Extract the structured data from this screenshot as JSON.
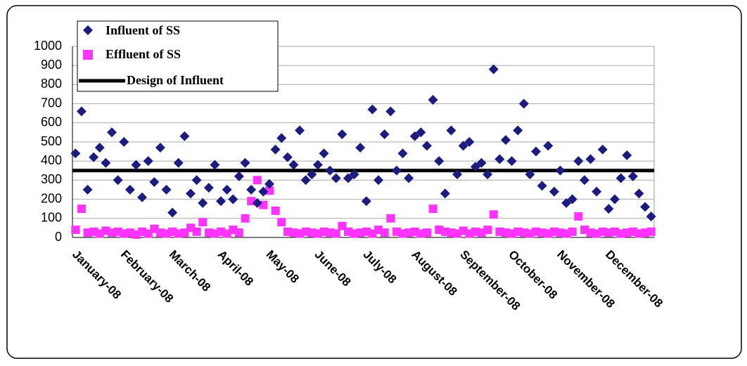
{
  "chart_data": {
    "type": "scatter",
    "categories": [
      "January-08",
      null,
      null,
      null,
      null,
      null,
      null,
      null,
      "February-08",
      null,
      null,
      null,
      null,
      null,
      null,
      null,
      "March-08",
      null,
      null,
      null,
      null,
      null,
      null,
      null,
      "April-08",
      null,
      null,
      null,
      null,
      null,
      null,
      null,
      "May-08",
      null,
      null,
      null,
      null,
      null,
      null,
      null,
      "June-08",
      null,
      null,
      null,
      null,
      null,
      null,
      null,
      "July-08",
      null,
      null,
      null,
      null,
      null,
      null,
      null,
      "August-08",
      null,
      null,
      null,
      null,
      null,
      null,
      null,
      "September-08",
      null,
      null,
      null,
      null,
      null,
      null,
      null,
      "October-08",
      null,
      null,
      null,
      null,
      null,
      null,
      null,
      "November-08",
      null,
      null,
      null,
      null,
      null,
      null,
      null,
      "December-08",
      null,
      null,
      null,
      null,
      null,
      null,
      null
    ],
    "series": [
      {
        "name": "Influent of SS",
        "color": "#1c1c80",
        "values": [
          440,
          660,
          250,
          420,
          470,
          390,
          550,
          300,
          500,
          250,
          380,
          210,
          400,
          290,
          470,
          250,
          130,
          390,
          530,
          230,
          300,
          180,
          260,
          380,
          190,
          250,
          200,
          320,
          390,
          250,
          180,
          240,
          280,
          460,
          520,
          420,
          380,
          560,
          300,
          330,
          380,
          440,
          350,
          310,
          540,
          310,
          330,
          470,
          190,
          670,
          300,
          540,
          660,
          350,
          440,
          310,
          530,
          550,
          480,
          720,
          400,
          230,
          560,
          330,
          480,
          500,
          370,
          390,
          330,
          880,
          410,
          510,
          400,
          560,
          700,
          330,
          450,
          270,
          480,
          240,
          350,
          180,
          200,
          400,
          300,
          410,
          240,
          460,
          150,
          200,
          310,
          430,
          320,
          230,
          160,
          110
        ]
      },
      {
        "name": "Effluent of SS",
        "color": "#ff33ff",
        "values": [
          40,
          150,
          25,
          30,
          20,
          35,
          25,
          30,
          20,
          25,
          15,
          30,
          20,
          45,
          25,
          20,
          30,
          20,
          25,
          50,
          30,
          80,
          25,
          20,
          30,
          20,
          40,
          25,
          100,
          190,
          300,
          170,
          245,
          140,
          80,
          30,
          25,
          20,
          30,
          25,
          20,
          30,
          25,
          20,
          60,
          30,
          20,
          25,
          30,
          20,
          40,
          25,
          100,
          30,
          20,
          25,
          30,
          20,
          25,
          150,
          40,
          30,
          25,
          20,
          35,
          20,
          30,
          25,
          40,
          120,
          30,
          25,
          20,
          30,
          25,
          20,
          30,
          25,
          20,
          30,
          25,
          20,
          30,
          110,
          40,
          25,
          20,
          30,
          25,
          30,
          20,
          25,
          30,
          20,
          25,
          30
        ]
      },
      {
        "name": "Design of Influent",
        "color": "#000000",
        "value": 350
      }
    ],
    "ylim": [
      0,
      1000
    ],
    "yticks": [
      0,
      100,
      200,
      300,
      400,
      500,
      600,
      700,
      800,
      900,
      1000
    ],
    "grid": true
  }
}
